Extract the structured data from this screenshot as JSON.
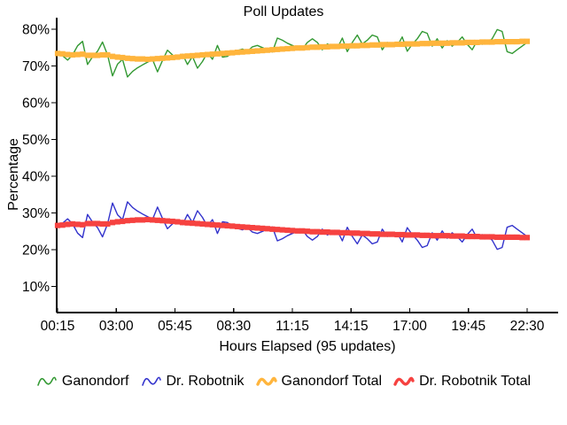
{
  "title": "Poll Updates",
  "axes": {
    "y_label": "Percentage",
    "x_label": "Hours Elapsed (95 updates)",
    "y_tick_values": [
      10,
      20,
      30,
      40,
      50,
      60,
      70,
      80
    ],
    "y_tick_labels": [
      "10%",
      "20%",
      "30%",
      "40%",
      "50%",
      "60%",
      "70%",
      "80%"
    ],
    "x_tick_labels": [
      "00:15",
      "03:00",
      "05:45",
      "08:30",
      "11:15",
      "14:15",
      "17:00",
      "19:45",
      "22:30"
    ]
  },
  "legend": {
    "items": [
      {
        "label": "Ganondorf",
        "color": "#339933",
        "thick": false
      },
      {
        "label": "Dr. Robotnik",
        "color": "#3333cc",
        "thick": false
      },
      {
        "label": "Ganondorf Total",
        "color": "#ffb53d",
        "thick": true
      },
      {
        "label": "Dr. Robotnik Total",
        "color": "#f64240",
        "thick": true
      }
    ]
  },
  "chart_data": {
    "type": "line",
    "title": "Poll Updates",
    "xlabel": "Hours Elapsed (95 updates)",
    "ylabel": "Percentage",
    "ylim": [
      0,
      85
    ],
    "grid": false,
    "legend_position": "bottom",
    "n_points": 95,
    "x_tick_labels": [
      "00:15",
      "03:00",
      "05:45",
      "08:30",
      "11:15",
      "14:15",
      "17:00",
      "19:45",
      "22:30"
    ],
    "series": [
      {
        "name": "Ganondorf",
        "color": "#339933",
        "style": "thin",
        "values": [
          73.4,
          72.8,
          71.6,
          73.0,
          75.5,
          76.7,
          70.4,
          72.5,
          74.0,
          76.5,
          73.0,
          67.3,
          70.5,
          71.8,
          67.0,
          68.5,
          69.5,
          70.3,
          71.0,
          71.8,
          68.4,
          71.5,
          74.3,
          73.0,
          72.0,
          73.2,
          70.4,
          72.6,
          69.4,
          71.2,
          73.6,
          71.8,
          75.6,
          72.4,
          72.6,
          73.8,
          74.2,
          74.6,
          74.0,
          75.2,
          75.6,
          75.0,
          74.4,
          73.8,
          77.6,
          77.0,
          76.2,
          75.6,
          75.0,
          74.6,
          76.4,
          77.4,
          76.4,
          74.4,
          76.0,
          75.4,
          74.8,
          77.6,
          73.9,
          76.4,
          78.4,
          76.0,
          77.0,
          78.4,
          77.9,
          74.4,
          76.4,
          75.9,
          75.4,
          77.9,
          74.0,
          75.9,
          77.4,
          79.4,
          78.9,
          75.4,
          77.4,
          74.9,
          76.9,
          75.4,
          76.4,
          77.9,
          75.9,
          74.4,
          76.9,
          75.9,
          76.4,
          77.4,
          79.9,
          79.4,
          73.9,
          73.4,
          74.4,
          75.4,
          76.4
        ]
      },
      {
        "name": "Dr. Robotnik",
        "color": "#3333cc",
        "style": "thin",
        "values": [
          26.6,
          27.2,
          28.4,
          27.0,
          24.5,
          23.3,
          29.6,
          27.5,
          26.0,
          23.5,
          27.0,
          32.7,
          29.5,
          28.2,
          33.0,
          31.5,
          30.5,
          29.7,
          29.0,
          28.2,
          31.6,
          28.5,
          25.7,
          27.0,
          28.0,
          26.8,
          29.6,
          27.4,
          30.6,
          28.8,
          26.4,
          28.2,
          24.4,
          27.6,
          27.4,
          26.2,
          25.8,
          25.4,
          26.0,
          24.8,
          24.4,
          25.0,
          25.6,
          26.2,
          22.4,
          23.0,
          23.8,
          24.4,
          25.0,
          25.4,
          23.6,
          22.6,
          23.6,
          25.6,
          24.0,
          24.6,
          25.2,
          22.4,
          26.1,
          23.6,
          21.6,
          24.0,
          23.0,
          21.6,
          22.1,
          25.6,
          23.6,
          24.1,
          24.6,
          22.1,
          26.0,
          24.1,
          22.6,
          20.6,
          21.1,
          24.6,
          22.6,
          25.1,
          23.1,
          24.6,
          23.6,
          22.1,
          24.1,
          25.6,
          23.1,
          24.1,
          23.6,
          22.6,
          20.1,
          20.6,
          26.1,
          26.6,
          25.6,
          24.6,
          23.6
        ]
      },
      {
        "name": "Ganondorf Total",
        "color": "#ffb53d",
        "style": "thick",
        "values": [
          73.4,
          73.3,
          73.1,
          73.0,
          73.1,
          73.2,
          72.9,
          72.9,
          72.9,
          73.0,
          73.0,
          72.6,
          72.4,
          72.3,
          72.1,
          72.0,
          71.9,
          71.9,
          71.8,
          71.9,
          72.0,
          72.1,
          72.2,
          72.3,
          72.4,
          72.6,
          72.7,
          72.8,
          72.9,
          73.0,
          73.1,
          73.2,
          73.3,
          73.4,
          73.5,
          73.6,
          73.7,
          73.8,
          73.9,
          74.0,
          74.1,
          74.2,
          74.3,
          74.4,
          74.5,
          74.6,
          74.7,
          74.8,
          74.9,
          74.9,
          75.0,
          75.1,
          75.1,
          75.2,
          75.2,
          75.3,
          75.3,
          75.4,
          75.4,
          75.5,
          75.5,
          75.6,
          75.6,
          75.7,
          75.7,
          75.8,
          75.8,
          75.8,
          75.9,
          75.9,
          76.0,
          76.0,
          76.0,
          76.1,
          76.1,
          76.2,
          76.2,
          76.2,
          76.2,
          76.3,
          76.3,
          76.3,
          76.4,
          76.4,
          76.4,
          76.5,
          76.5,
          76.5,
          76.6,
          76.6,
          76.6,
          76.6,
          76.6,
          76.7,
          76.7
        ]
      },
      {
        "name": "Dr. Robotnik Total",
        "color": "#f64240",
        "style": "thick",
        "values": [
          26.6,
          26.7,
          26.9,
          27.0,
          26.9,
          26.8,
          27.1,
          27.1,
          27.1,
          27.0,
          27.0,
          27.4,
          27.6,
          27.7,
          27.9,
          28.0,
          28.1,
          28.1,
          28.2,
          28.1,
          28.0,
          27.9,
          27.8,
          27.7,
          27.6,
          27.4,
          27.3,
          27.2,
          27.1,
          27.0,
          26.9,
          26.8,
          26.7,
          26.6,
          26.5,
          26.4,
          26.3,
          26.2,
          26.1,
          26.0,
          25.9,
          25.8,
          25.7,
          25.6,
          25.5,
          25.4,
          25.3,
          25.2,
          25.1,
          25.1,
          25.0,
          24.9,
          24.9,
          24.8,
          24.8,
          24.7,
          24.7,
          24.6,
          24.6,
          24.5,
          24.5,
          24.4,
          24.4,
          24.3,
          24.3,
          24.2,
          24.2,
          24.2,
          24.1,
          24.1,
          24.0,
          24.0,
          24.0,
          23.9,
          23.9,
          23.8,
          23.8,
          23.8,
          23.8,
          23.7,
          23.7,
          23.7,
          23.6,
          23.6,
          23.6,
          23.5,
          23.5,
          23.5,
          23.4,
          23.4,
          23.4,
          23.4,
          23.4,
          23.3,
          23.3
        ]
      }
    ]
  }
}
